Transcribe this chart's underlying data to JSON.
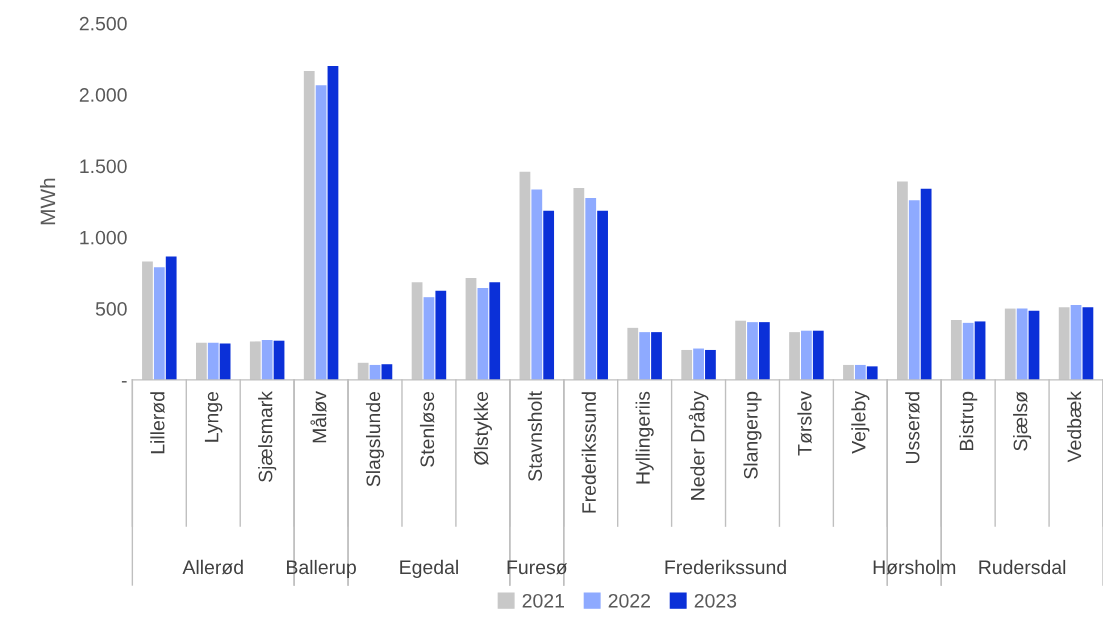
{
  "chart_data": {
    "type": "bar",
    "ylabel": "MWh",
    "categories": [
      "Lillerød",
      "Lynge",
      "Sjælsmark",
      "Måløv",
      "Slagslunde",
      "Stenløse",
      "Ølstykke",
      "Stavnsholt",
      "Frederikssund",
      "Hyllingeriis",
      "Neder Dråby",
      "Slangerup",
      "Tørslev",
      "Vejleby",
      "Usserød",
      "Bistrup",
      "Sjælsø",
      "Vedbæk"
    ],
    "series": [
      {
        "name": "2021",
        "color": "#c8c8c8",
        "values": [
          830,
          260,
          270,
          2165,
          120,
          685,
          715,
          1460,
          1345,
          365,
          210,
          415,
          335,
          105,
          1390,
          420,
          500,
          510
        ]
      },
      {
        "name": "2022",
        "color": "#8eaaff",
        "values": [
          790,
          260,
          280,
          2065,
          105,
          580,
          645,
          1335,
          1275,
          335,
          220,
          405,
          345,
          105,
          1260,
          400,
          500,
          525
        ]
      },
      {
        "name": "2023",
        "color": "#0b30d8",
        "values": [
          865,
          255,
          275,
          2200,
          110,
          625,
          685,
          1185,
          1185,
          335,
          210,
          405,
          345,
          95,
          1340,
          410,
          485,
          510
        ]
      }
    ],
    "annotations": [
      "Allerød",
      "Ballerup",
      "Egedal",
      "Furesø",
      "Frederikssund",
      "Hørsholm",
      "Rudersdal"
    ],
    "ylim": [
      0,
      2500
    ],
    "yticks": [
      {
        "value": 0,
        "label": "-"
      },
      500,
      {
        "value": 1000,
        "label": "1.000"
      },
      {
        "value": 1500,
        "label": "1.500"
      },
      {
        "value": 2000,
        "label": "2.000"
      },
      {
        "value": 2500,
        "label": "2.500"
      }
    ],
    "grid": false,
    "legend": "bottom"
  }
}
